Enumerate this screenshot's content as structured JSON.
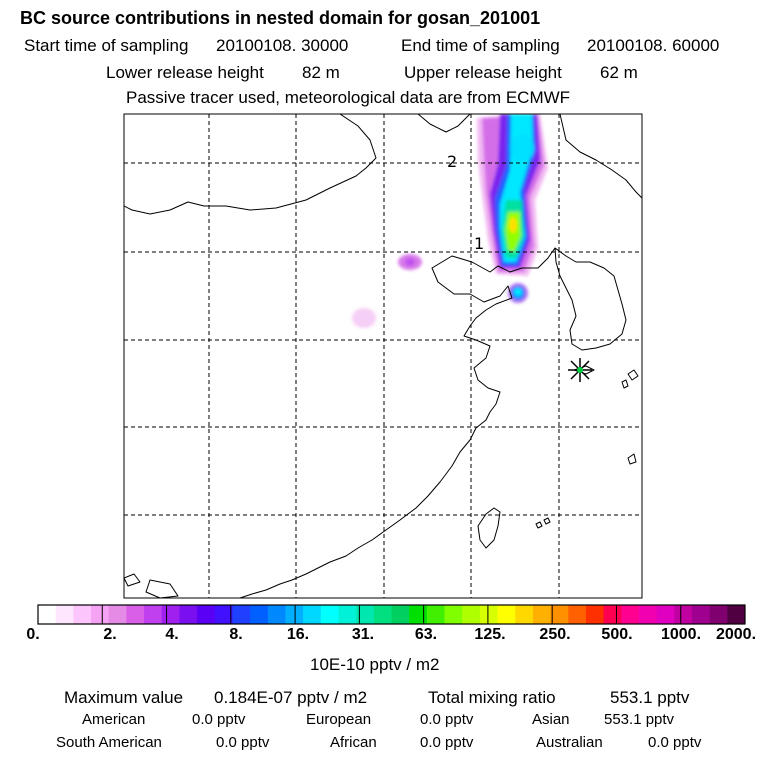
{
  "header": {
    "title": "BC  source contributions in nested domain for gosan_201001",
    "start_label": "Start time of sampling",
    "start_value": "20100108. 30000",
    "end_label": "End time of sampling",
    "end_value": "20100108. 60000",
    "lower_label": "Lower release height",
    "lower_value": "82 m",
    "upper_label": "Upper release height",
    "upper_value": "62 m",
    "tracer_note": "Passive tracer used, meteorological data are from ECMWF"
  },
  "map": {
    "contour_labels": [
      "2",
      "1"
    ],
    "receptor_marker": "star-icon"
  },
  "colorbar": {
    "ticks": [
      "0.",
      "2.",
      "4.",
      "8.",
      "16.",
      "31.",
      "63.",
      "125.",
      "250.",
      "500.",
      "1000.",
      "2000."
    ],
    "unit": "10E-10 pptv / m2",
    "colors": [
      "#ffffff",
      "#ffe6ff",
      "#fcc6fc",
      "#f5a3f5",
      "#e58ae5",
      "#da5fe8",
      "#c040f0",
      "#a020f0",
      "#7a10f0",
      "#5a00f5",
      "#4010ff",
      "#2040ff",
      "#0060ff",
      "#0088ff",
      "#00b0ff",
      "#00d8ff",
      "#00ffff",
      "#00f0d8",
      "#00e8b0",
      "#00e080",
      "#00d060",
      "#00e000",
      "#40f000",
      "#80ff00",
      "#b0ff00",
      "#d8ff00",
      "#ffff00",
      "#ffd800",
      "#ffb000",
      "#ff9000",
      "#ff6000",
      "#ff3000",
      "#ff0050",
      "#ff0090",
      "#f000b0",
      "#e000c0",
      "#c000a0",
      "#a00090",
      "#800070",
      "#500040"
    ]
  },
  "summary": {
    "max_label": "Maximum value",
    "max_value": "0.184E-07 pptv / m2",
    "total_label": "Total mixing ratio",
    "total_value": "553.1 pptv",
    "regions": [
      {
        "name": "American",
        "value": "0.0 pptv"
      },
      {
        "name": "European",
        "value": "0.0 pptv"
      },
      {
        "name": "Asian",
        "value": "553.1 pptv"
      },
      {
        "name": "South American",
        "value": "0.0 pptv"
      },
      {
        "name": "African",
        "value": "0.0 pptv"
      },
      {
        "name": "Australian",
        "value": "0.0 pptv"
      }
    ]
  }
}
